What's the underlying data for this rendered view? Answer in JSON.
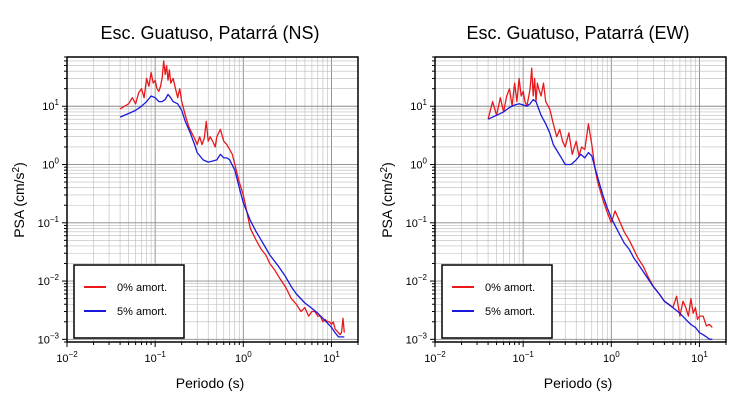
{
  "chart_data": [
    {
      "type": "line",
      "title": "Esc. Guatuso, Patarrá (NS)",
      "xlabel": "Periodo (s)",
      "ylabel": "PSA (cm/s²)",
      "xscale": "log",
      "yscale": "log",
      "xlim": [
        0.01,
        20
      ],
      "ylim": [
        0.0009,
        70
      ],
      "grid": true,
      "legend_position": "bottom-left",
      "x_ticks": [
        {
          "base": "10",
          "exp": "−2"
        },
        {
          "base": "10",
          "exp": "−1"
        },
        {
          "base": "10",
          "exp": "0"
        },
        {
          "base": "10",
          "exp": "1"
        }
      ],
      "y_ticks": [
        {
          "base": "10",
          "exp": "−3"
        },
        {
          "base": "10",
          "exp": "−2"
        },
        {
          "base": "10",
          "exp": "−1"
        },
        {
          "base": "10",
          "exp": "0"
        },
        {
          "base": "10",
          "exp": "1"
        }
      ],
      "series": [
        {
          "name": "0% amort.",
          "color": "#e8191c",
          "x": [
            0.04,
            0.045,
            0.05,
            0.055,
            0.06,
            0.065,
            0.07,
            0.075,
            0.08,
            0.085,
            0.09,
            0.095,
            0.1,
            0.105,
            0.11,
            0.115,
            0.12,
            0.125,
            0.13,
            0.135,
            0.14,
            0.145,
            0.15,
            0.16,
            0.17,
            0.18,
            0.19,
            0.2,
            0.22,
            0.24,
            0.26,
            0.28,
            0.3,
            0.32,
            0.34,
            0.36,
            0.38,
            0.4,
            0.42,
            0.45,
            0.48,
            0.5,
            0.55,
            0.6,
            0.65,
            0.7,
            0.75,
            0.8,
            0.9,
            1.0,
            1.1,
            1.2,
            1.4,
            1.6,
            1.8,
            2.0,
            2.3,
            2.6,
            3.0,
            3.5,
            4.0,
            4.5,
            5.0,
            5.5,
            6.0,
            6.5,
            7.0,
            7.5,
            8.0,
            8.5,
            9.0,
            9.5,
            10,
            10.5,
            11,
            11.5,
            12,
            12.5,
            13,
            13.5,
            14
          ],
          "y": [
            9,
            10,
            11,
            14,
            11,
            17,
            20,
            14,
            30,
            22,
            38,
            25,
            28,
            20,
            18,
            22,
            30,
            60,
            35,
            50,
            28,
            42,
            25,
            30,
            20,
            14,
            20,
            12,
            7,
            4.5,
            3.5,
            2.8,
            2.2,
            3.0,
            2.2,
            2.8,
            5.5,
            2.5,
            3.0,
            2.5,
            2.0,
            3.0,
            4.0,
            2.5,
            2.2,
            1.8,
            1.5,
            1.0,
            0.5,
            0.3,
            0.15,
            0.08,
            0.05,
            0.035,
            0.028,
            0.02,
            0.015,
            0.011,
            0.008,
            0.005,
            0.004,
            0.003,
            0.0035,
            0.0025,
            0.003,
            0.003,
            0.0025,
            0.0025,
            0.002,
            0.0022,
            0.002,
            0.002,
            0.0018,
            0.002,
            0.0015,
            0.0014,
            0.0013,
            0.0012,
            0.0013,
            0.0023,
            0.0013
          ]
        },
        {
          "name": "5% amort.",
          "color": "#1a1adc",
          "x": [
            0.04,
            0.05,
            0.06,
            0.07,
            0.08,
            0.09,
            0.1,
            0.11,
            0.12,
            0.13,
            0.14,
            0.15,
            0.16,
            0.18,
            0.2,
            0.22,
            0.25,
            0.28,
            0.3,
            0.35,
            0.4,
            0.45,
            0.5,
            0.55,
            0.6,
            0.65,
            0.7,
            0.8,
            0.9,
            1.0,
            1.2,
            1.4,
            1.6,
            1.8,
            2.0,
            2.5,
            3.0,
            3.5,
            4.0,
            5.0,
            6.0,
            7.0,
            8.0,
            9.0,
            10,
            11,
            12,
            13,
            14
          ],
          "y": [
            6.5,
            7.5,
            8.5,
            10,
            12,
            15,
            14,
            12,
            12,
            13,
            16,
            14,
            12,
            11,
            8.5,
            5.5,
            3.5,
            2.2,
            1.6,
            1.2,
            1.1,
            1.15,
            1.2,
            1.5,
            1.3,
            1.3,
            1.2,
            0.8,
            0.4,
            0.22,
            0.11,
            0.07,
            0.05,
            0.037,
            0.028,
            0.018,
            0.012,
            0.008,
            0.006,
            0.0042,
            0.0034,
            0.0028,
            0.0023,
            0.0019,
            0.0016,
            0.0013,
            0.0011,
            0.0011,
            0.0011
          ]
        }
      ]
    },
    {
      "type": "line",
      "title": "Esc. Guatuso, Patarrá (EW)",
      "xlabel": "Periodo (s)",
      "ylabel": "PSA (cm/s²)",
      "xscale": "log",
      "yscale": "log",
      "xlim": [
        0.01,
        20
      ],
      "ylim": [
        0.0009,
        70
      ],
      "grid": true,
      "legend_position": "bottom-left",
      "x_ticks": [
        {
          "base": "10",
          "exp": "−2"
        },
        {
          "base": "10",
          "exp": "−1"
        },
        {
          "base": "10",
          "exp": "0"
        },
        {
          "base": "10",
          "exp": "1"
        }
      ],
      "y_ticks": [
        {
          "base": "10",
          "exp": "−3"
        },
        {
          "base": "10",
          "exp": "−2"
        },
        {
          "base": "10",
          "exp": "−1"
        },
        {
          "base": "10",
          "exp": "0"
        },
        {
          "base": "10",
          "exp": "1"
        }
      ],
      "series": [
        {
          "name": "0% amort.",
          "color": "#e8191c",
          "x": [
            0.04,
            0.045,
            0.05,
            0.055,
            0.06,
            0.065,
            0.07,
            0.075,
            0.08,
            0.085,
            0.09,
            0.095,
            0.1,
            0.105,
            0.11,
            0.115,
            0.12,
            0.125,
            0.13,
            0.135,
            0.14,
            0.145,
            0.15,
            0.16,
            0.17,
            0.18,
            0.2,
            0.22,
            0.24,
            0.26,
            0.28,
            0.3,
            0.33,
            0.36,
            0.4,
            0.43,
            0.46,
            0.5,
            0.55,
            0.6,
            0.65,
            0.7,
            0.8,
            0.9,
            1.0,
            1.1,
            1.2,
            1.4,
            1.6,
            1.8,
            2.0,
            2.3,
            2.6,
            3.0,
            3.5,
            4.0,
            4.5,
            5.0,
            5.5,
            6.0,
            6.5,
            7.0,
            7.5,
            8.0,
            8.5,
            9.0,
            9.5,
            10,
            11,
            12,
            13,
            14
          ],
          "y": [
            6,
            12,
            7,
            14,
            8,
            15,
            20,
            10,
            25,
            12,
            30,
            15,
            18,
            12,
            10,
            14,
            20,
            45,
            15,
            30,
            12,
            25,
            20,
            15,
            25,
            12,
            9,
            5,
            3.0,
            4.0,
            2.5,
            2.0,
            3.5,
            1.5,
            2.5,
            1.4,
            2.0,
            1.8,
            5.0,
            2.2,
            0.9,
            0.5,
            0.25,
            0.15,
            0.1,
            0.16,
            0.12,
            0.07,
            0.05,
            0.035,
            0.025,
            0.018,
            0.012,
            0.008,
            0.006,
            0.0045,
            0.004,
            0.0035,
            0.0055,
            0.0025,
            0.0045,
            0.0035,
            0.0025,
            0.005,
            0.0028,
            0.0035,
            0.0022,
            0.0025,
            0.0025,
            0.0017,
            0.0018,
            0.0016
          ]
        },
        {
          "name": "5% amort.",
          "color": "#1a1adc",
          "x": [
            0.04,
            0.05,
            0.06,
            0.07,
            0.08,
            0.09,
            0.1,
            0.11,
            0.12,
            0.13,
            0.14,
            0.15,
            0.16,
            0.18,
            0.2,
            0.22,
            0.25,
            0.28,
            0.3,
            0.35,
            0.4,
            0.45,
            0.5,
            0.55,
            0.6,
            0.65,
            0.7,
            0.8,
            0.9,
            1.0,
            1.2,
            1.4,
            1.6,
            1.8,
            2.0,
            2.5,
            3.0,
            3.5,
            4.0,
            5.0,
            6.0,
            7.0,
            8.0,
            9.0,
            10,
            11,
            12,
            13,
            14
          ],
          "y": [
            6,
            7,
            8,
            9.5,
            10.5,
            11,
            10.5,
            10,
            11,
            13,
            12,
            9,
            7,
            5,
            3.5,
            2.2,
            1.6,
            1.2,
            1.0,
            1.0,
            1.2,
            1.5,
            1.3,
            1.6,
            1.4,
            0.9,
            0.6,
            0.3,
            0.18,
            0.12,
            0.07,
            0.045,
            0.035,
            0.025,
            0.02,
            0.012,
            0.008,
            0.006,
            0.0045,
            0.0035,
            0.0028,
            0.0022,
            0.0018,
            0.0016,
            0.0013,
            0.0012,
            0.0011,
            0.001,
            0.001
          ]
        }
      ]
    }
  ]
}
